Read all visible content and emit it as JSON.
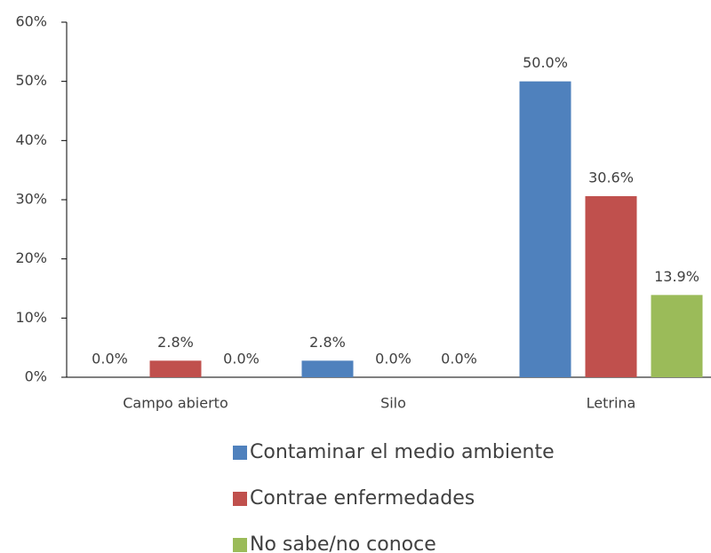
{
  "chart_data": {
    "type": "bar",
    "categories": [
      "Campo abierto",
      "Silo",
      "Letrina"
    ],
    "series": [
      {
        "name": "Contaminar el medio ambiente",
        "color": "#4f81bd",
        "values": [
          0,
          2.8,
          50
        ],
        "value_labels": [
          "0.0%",
          "2.8%",
          "50.0%"
        ]
      },
      {
        "name": "Contrae enfermedades",
        "color": "#c0504d",
        "values": [
          2.8,
          0,
          30.6
        ],
        "value_labels": [
          "2.8%",
          "0.0%",
          "30.6%"
        ]
      },
      {
        "name": "No sabe/no conoce",
        "color": "#9bbb59",
        "values": [
          0,
          0,
          13.9
        ],
        "value_labels": [
          "0.0%",
          "0.0%",
          "13.9%"
        ]
      }
    ],
    "ylim": [
      0,
      60
    ],
    "yticks": [
      {
        "value": 0,
        "label": "0%"
      },
      {
        "value": 10,
        "label": "10%"
      },
      {
        "value": 20,
        "label": "20%"
      },
      {
        "value": 30,
        "label": "30%"
      },
      {
        "value": 40,
        "label": "40%"
      },
      {
        "value": 50,
        "label": "50%"
      },
      {
        "value": 60,
        "label": "60%"
      }
    ],
    "grid": false,
    "legend": "bottom"
  }
}
